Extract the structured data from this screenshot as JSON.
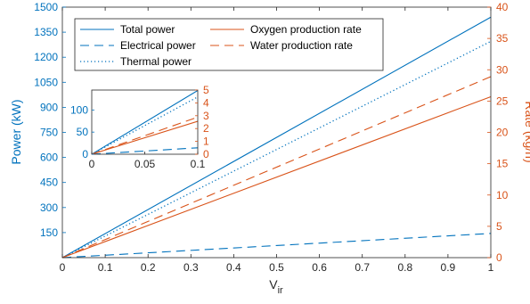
{
  "chart_data": {
    "type": "line",
    "xlabel": "V",
    "xlabel_sub": "ir",
    "ylabel_left": "Power (kW)",
    "ylabel_right": "Rate (kg/h)",
    "xlim": [
      0,
      1
    ],
    "ylim_left": [
      0,
      1500
    ],
    "ylim_right": [
      0,
      40
    ],
    "x_ticks": [
      "0",
      "0.1",
      "0.2",
      "0.3",
      "0.4",
      "0.5",
      "0.6",
      "0.7",
      "0.8",
      "0.9",
      "1"
    ],
    "y_left_ticks": [
      "150",
      "300",
      "450",
      "600",
      "750",
      "900",
      "1050",
      "1200",
      "1350",
      "1500"
    ],
    "y_right_ticks": [
      "0",
      "5",
      "10",
      "15",
      "20",
      "25",
      "30",
      "35",
      "40"
    ],
    "grid": false,
    "legend_position": "top-left",
    "colors": {
      "power": "#0072BD",
      "rate": "#D95319"
    },
    "series": [
      {
        "name": "Total power",
        "axis": "left",
        "style": "solid",
        "x": [
          0,
          1
        ],
        "y": [
          0,
          1440
        ]
      },
      {
        "name": "Electrical power",
        "axis": "left",
        "style": "dashed",
        "x": [
          0,
          1
        ],
        "y": [
          0,
          145
        ]
      },
      {
        "name": "Thermal power",
        "axis": "left",
        "style": "dotted",
        "x": [
          0,
          1
        ],
        "y": [
          0,
          1295
        ]
      },
      {
        "name": "Oxygen production rate",
        "axis": "right",
        "style": "solid",
        "x": [
          0,
          1
        ],
        "y": [
          0,
          25.7
        ]
      },
      {
        "name": "Water production rate",
        "axis": "right",
        "style": "dashed",
        "x": [
          0,
          1
        ],
        "y": [
          0,
          28.9
        ]
      }
    ],
    "inset": {
      "xlim": [
        0,
        0.1
      ],
      "ylim_left": [
        0,
        145
      ],
      "ylim_right": [
        0,
        5
      ],
      "x_ticks": [
        "0",
        "0.05",
        "0.1"
      ],
      "y_left_ticks": [
        "0",
        "50",
        "100"
      ],
      "y_right_ticks": [
        "0",
        "1",
        "2",
        "3",
        "4",
        "5"
      ]
    }
  }
}
